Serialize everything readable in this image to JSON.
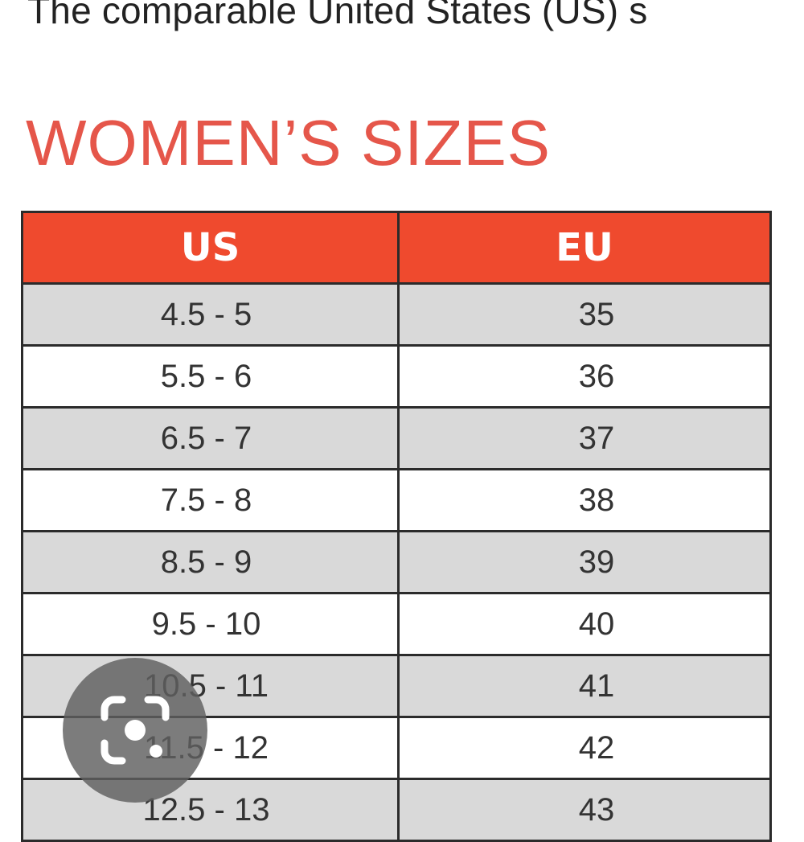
{
  "intro": {
    "text": "The comparable United States (US) s"
  },
  "heading": "WOMEN’S SIZES",
  "table": {
    "headers": [
      "US",
      "EU"
    ],
    "rows": [
      {
        "us": "4.5 - 5",
        "eu": "35"
      },
      {
        "us": "5.5 - 6",
        "eu": "36"
      },
      {
        "us": "6.5 - 7",
        "eu": "37"
      },
      {
        "us": "7.5 - 8",
        "eu": "38"
      },
      {
        "us": "8.5 - 9",
        "eu": "39"
      },
      {
        "us": "9.5 - 10",
        "eu": "40"
      },
      {
        "us": "10.5 - 11",
        "eu": "41"
      },
      {
        "us": "11.5 - 12",
        "eu": "42"
      },
      {
        "us": "12.5 - 13",
        "eu": "43"
      }
    ]
  },
  "colors": {
    "heading": "#e5564a",
    "header_bg": "#ef4a2e",
    "shaded_row": "#d9d9d9",
    "border": "#2b2b2b"
  },
  "overlay": {
    "icon": "lens-search-icon"
  }
}
